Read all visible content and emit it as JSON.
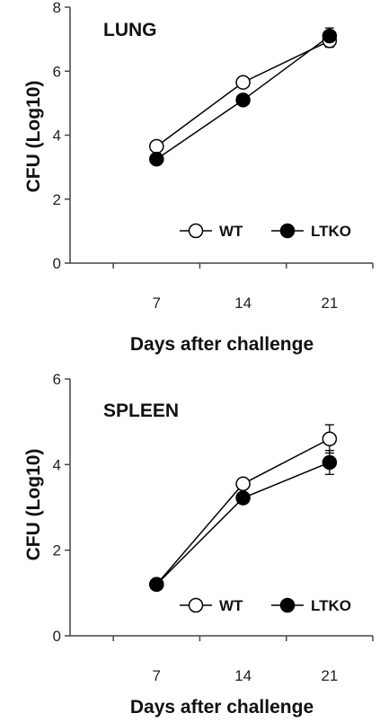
{
  "chart_data": [
    {
      "type": "line",
      "title": "LUNG",
      "xlabel": "Days after challenge",
      "ylabel": "CFU (Log10)",
      "categories": [
        "7",
        "14",
        "21"
      ],
      "ylim": [
        0,
        8
      ],
      "yticks": [
        0,
        2,
        4,
        6,
        8
      ],
      "grid": false,
      "legend": "bottom-right",
      "series": [
        {
          "name": "WT",
          "values": [
            3.65,
            5.65,
            6.95
          ],
          "errors": [
            0.1,
            0.1,
            0.2
          ],
          "marker": "open-circle",
          "color": "#000000"
        },
        {
          "name": "LTKO",
          "values": [
            3.25,
            5.1,
            7.1
          ],
          "errors": [
            0.1,
            0.1,
            0.25
          ],
          "marker": "filled-circle",
          "color": "#000000"
        }
      ]
    },
    {
      "type": "line",
      "title": "SPLEEN",
      "xlabel": "Days after challenge",
      "ylabel": "CFU (Log10)",
      "categories": [
        "7",
        "14",
        "21"
      ],
      "ylim": [
        0,
        6
      ],
      "yticks": [
        0,
        2,
        4,
        6
      ],
      "grid": false,
      "legend": "bottom-right",
      "series": [
        {
          "name": "WT",
          "values": [
            1.2,
            3.55,
            4.6
          ],
          "errors": [
            0.05,
            0.05,
            0.33
          ],
          "marker": "open-circle",
          "color": "#000000"
        },
        {
          "name": "LTKO",
          "values": [
            1.2,
            3.22,
            4.05
          ],
          "errors": [
            0.05,
            0.05,
            0.28
          ],
          "marker": "filled-circle",
          "color": "#000000"
        }
      ]
    }
  ]
}
